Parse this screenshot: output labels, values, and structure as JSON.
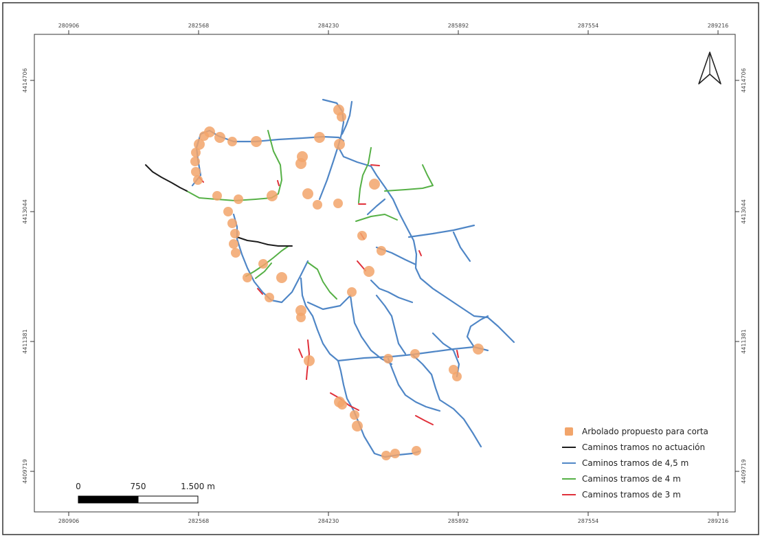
{
  "map": {
    "top_ticks": [
      "280906",
      "282568",
      "284230",
      "285892",
      "287554",
      "289216"
    ],
    "bottom_ticks": [
      "280906",
      "282568",
      "284230",
      "285892",
      "287554",
      "289216"
    ],
    "left_ticks": [
      "4414706",
      "4413044",
      "4411381",
      "4409719"
    ],
    "right_ticks": [
      "4414706",
      "4413044",
      "4411381",
      "4409719"
    ],
    "north_arrow_icon": "north-arrow-icon",
    "scale_bar": {
      "labels": [
        "0",
        "750",
        "1.500 m"
      ]
    },
    "legend": [
      {
        "label": "Arbolado propuesto para corta",
        "color": "#f2a56b",
        "symbol": "square"
      },
      {
        "label": "Caminos tramos no actuación",
        "color": "#1c1c1c",
        "symbol": "line"
      },
      {
        "label": "Caminos tramos de 4,5 m",
        "color": "#4f86c6",
        "symbol": "line"
      },
      {
        "label": "Caminos tramos de 4 m",
        "color": "#55b045",
        "symbol": "line"
      },
      {
        "label": "Caminos tramos de 3 m",
        "color": "#e0303a",
        "symbol": "line"
      }
    ]
  }
}
